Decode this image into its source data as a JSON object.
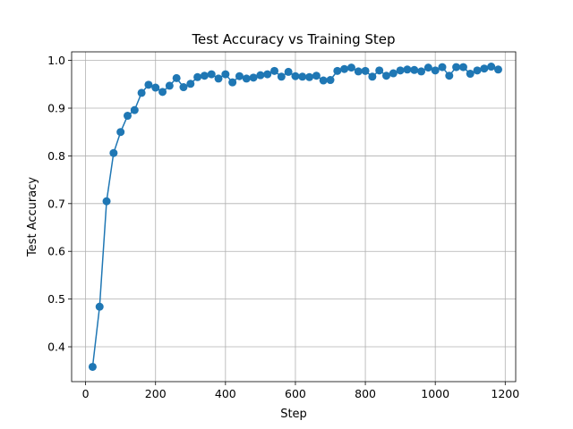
{
  "chart_data": {
    "type": "line",
    "title": "Test Accuracy vs Training Step",
    "xlabel": "Step",
    "ylabel": "Test Accuracy",
    "xlim": [
      -40,
      1230
    ],
    "ylim": [
      0.327,
      1.018
    ],
    "xticks": [
      0,
      200,
      400,
      600,
      800,
      1000,
      1200
    ],
    "yticks": [
      0.4,
      0.5,
      0.6,
      0.7,
      0.8,
      0.9,
      1.0
    ],
    "xtick_labels": [
      "0",
      "200",
      "400",
      "600",
      "800",
      "1000",
      "1200"
    ],
    "ytick_labels": [
      "0.4",
      "0.5",
      "0.6",
      "0.7",
      "0.8",
      "0.9",
      "1.0"
    ],
    "grid": true,
    "marker": "circle",
    "series": [
      {
        "color": "#1f77b4",
        "x": [
          20,
          40,
          60,
          80,
          100,
          120,
          140,
          160,
          180,
          200,
          220,
          240,
          260,
          280,
          300,
          320,
          340,
          360,
          380,
          400,
          420,
          440,
          460,
          480,
          500,
          520,
          540,
          560,
          580,
          600,
          620,
          640,
          660,
          680,
          700,
          720,
          740,
          760,
          780,
          800,
          820,
          840,
          860,
          880,
          900,
          920,
          940,
          960,
          980,
          1000,
          1020,
          1040,
          1060,
          1080,
          1100,
          1120,
          1140,
          1160,
          1180
        ],
        "y": [
          0.358,
          0.484,
          0.705,
          0.806,
          0.85,
          0.884,
          0.896,
          0.932,
          0.949,
          0.943,
          0.934,
          0.947,
          0.963,
          0.944,
          0.951,
          0.965,
          0.968,
          0.971,
          0.962,
          0.971,
          0.954,
          0.967,
          0.962,
          0.964,
          0.969,
          0.971,
          0.978,
          0.966,
          0.976,
          0.967,
          0.966,
          0.965,
          0.968,
          0.958,
          0.959,
          0.978,
          0.982,
          0.985,
          0.977,
          0.978,
          0.966,
          0.979,
          0.968,
          0.973,
          0.979,
          0.981,
          0.98,
          0.977,
          0.985,
          0.979,
          0.986,
          0.968,
          0.986,
          0.986,
          0.972,
          0.979,
          0.983,
          0.987,
          0.981
        ]
      }
    ]
  }
}
